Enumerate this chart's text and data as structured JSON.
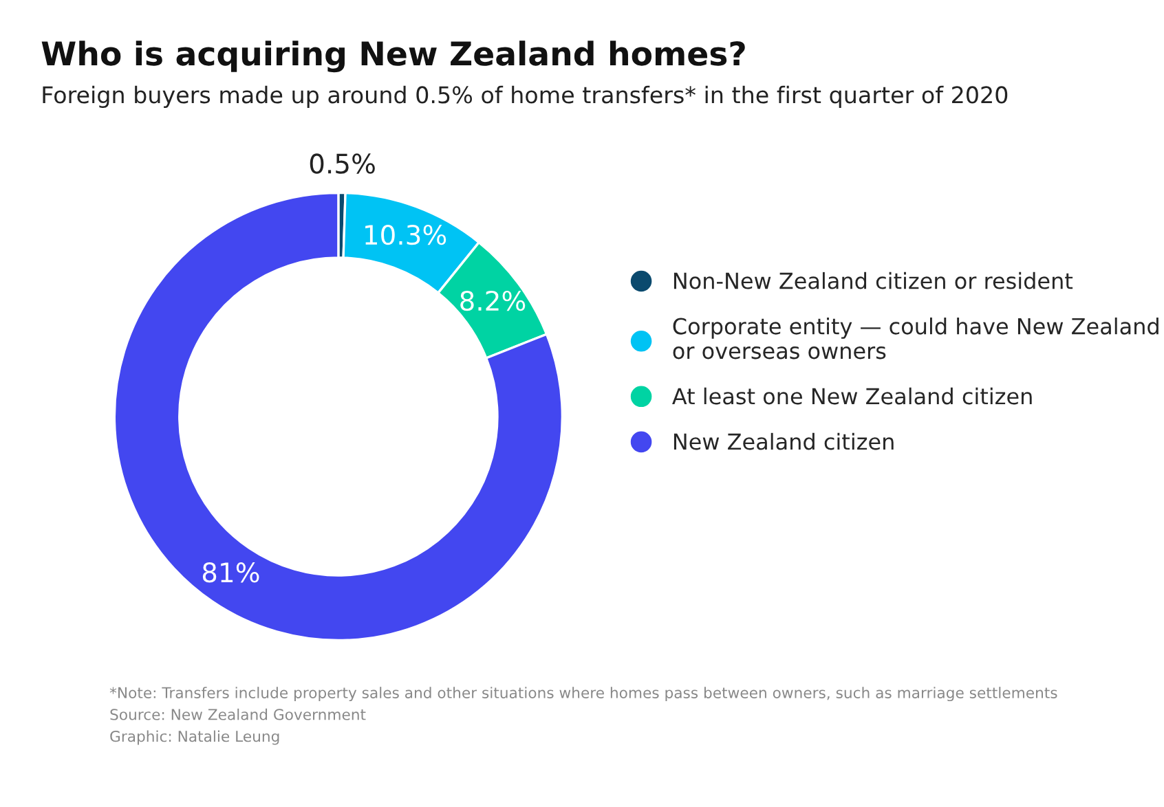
{
  "chart_data": {
    "type": "donut",
    "title": "Who is acquiring New Zealand homes?",
    "subtitle": "Foreign buyers made up around 0.5% of home transfers* in the first quarter of 2020",
    "categories": [
      "Non-New Zealand citizen or resident",
      "Corporate entity — could have New Zealand\nor overseas owners",
      "At least one New Zealand citizen",
      "New Zealand citizen"
    ],
    "values": [
      0.5,
      10.3,
      8.2,
      81
    ],
    "colors": [
      "#0b4a6e",
      "#00c3f4",
      "#00d3a3",
      "#4347f0"
    ],
    "value_labels": [
      "0.5%",
      "10.3%",
      "8.2%",
      "81%"
    ],
    "legend": "right",
    "annotations": [
      "*Note: Transfers include property sales and other situations where homes pass between owners, such as marriage settlements",
      "Source: New Zealand Government",
      "Graphic: Natalie Leung"
    ]
  }
}
